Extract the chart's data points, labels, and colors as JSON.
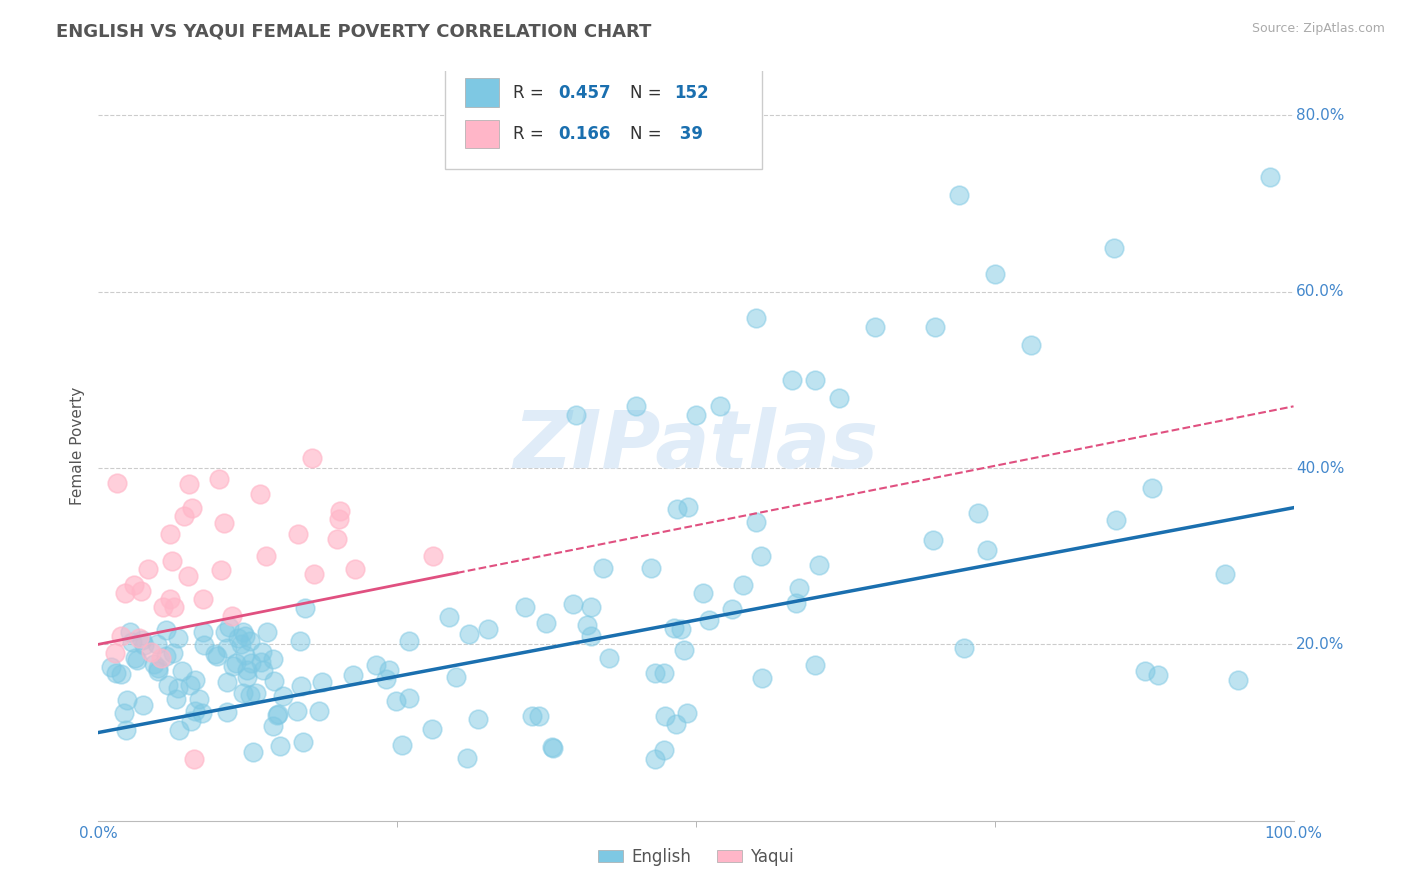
{
  "title": "ENGLISH VS YAQUI FEMALE POVERTY CORRELATION CHART",
  "source": "Source: ZipAtlas.com",
  "ylabel": "Female Poverty",
  "xlim": [
    0,
    1.0
  ],
  "ylim": [
    0,
    0.85
  ],
  "english_color": "#7ec8e3",
  "yaqui_color": "#ffb6c8",
  "english_line_color": "#1a6faf",
  "yaqui_line_color": "#e05080",
  "english_R": 0.457,
  "english_N": 152,
  "yaqui_R": 0.166,
  "yaqui_N": 39,
  "watermark": "ZIPatlas",
  "background_color": "#ffffff",
  "grid_color": "#cccccc",
  "title_color": "#555555",
  "label_color": "#4488cc",
  "ytick_color": "#4488cc",
  "english_line_start_y": 0.1,
  "english_line_end_y": 0.355,
  "yaqui_line_start_y": 0.2,
  "yaqui_line_end_y": 0.47
}
